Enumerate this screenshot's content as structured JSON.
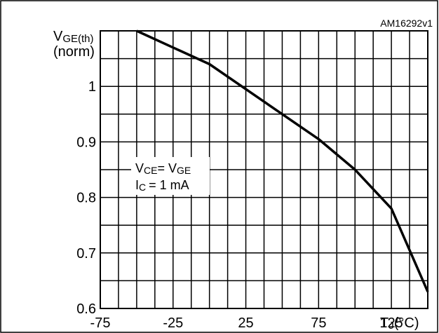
{
  "chart_data": {
    "type": "line",
    "figure_id": "AM16292v1",
    "ylabel_main": "V",
    "ylabel_sub": "GE(th)",
    "ylabel_line2": "(norm)",
    "xlabel_main": "T",
    "xlabel_sub": "J",
    "xlabel_unit": "(°C)",
    "xlim": [
      -75,
      150
    ],
    "ylim": [
      0.6,
      1.1
    ],
    "x_ticks": [
      -75,
      -25,
      25,
      75,
      125
    ],
    "y_ticks": [
      0.6,
      0.7,
      0.8,
      0.9,
      1.0
    ],
    "y_tick_labels": [
      "0.6",
      "0.7",
      "0.8",
      "0.9",
      "1"
    ],
    "grid": true,
    "annotation": {
      "line1_a": "V",
      "line1_a_sub": "CE",
      "line1_b": "= V",
      "line1_b_sub": "GE",
      "line2_a": "I",
      "line2_a_sub": "C",
      "line2_b": "= 1 mA"
    },
    "series": [
      {
        "x": [
          -50,
          -25,
          0,
          25,
          50,
          75,
          100,
          125,
          150
        ],
        "y": [
          1.1,
          1.07,
          1.04,
          0.995,
          0.95,
          0.905,
          0.85,
          0.78,
          0.63
        ]
      }
    ]
  }
}
